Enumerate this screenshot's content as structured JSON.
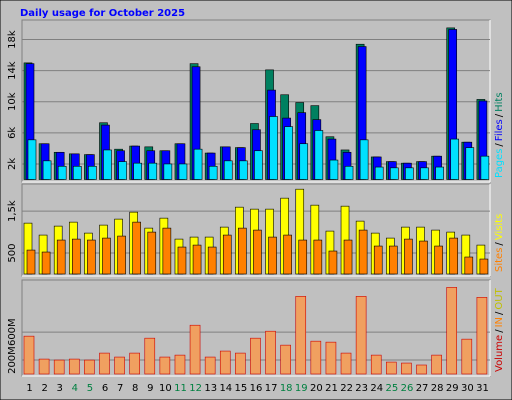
{
  "title": "Daily usage for October 2025",
  "categories": [
    "1",
    "2",
    "3",
    "4",
    "5",
    "6",
    "7",
    "8",
    "9",
    "10",
    "11",
    "12",
    "13",
    "14",
    "15",
    "16",
    "17",
    "18",
    "19",
    "20",
    "21",
    "22",
    "23",
    "24",
    "25",
    "26",
    "27",
    "28",
    "29",
    "30",
    "31"
  ],
  "weekend_categories": [
    "4",
    "5",
    "11",
    "12",
    "18",
    "19",
    "25",
    "26"
  ],
  "weekend_color": "#008040",
  "legend_separator": "/",
  "chart_data": [
    {
      "type": "bar",
      "ylim": [
        0,
        20000
      ],
      "yticks": [
        {
          "value": 2000,
          "label": "2k"
        },
        {
          "value": 6000,
          "label": "6k"
        },
        {
          "value": 10000,
          "label": "10k"
        },
        {
          "value": 14000,
          "label": "14k"
        },
        {
          "value": 18000,
          "label": "18k"
        }
      ],
      "grid": true,
      "series": [
        {
          "name": "Hits",
          "color": "#008060",
          "values": [
            15000,
            4600,
            3500,
            3300,
            3200,
            7300,
            3900,
            4300,
            4200,
            3700,
            4600,
            14900,
            3400,
            4200,
            4100,
            7200,
            14100,
            10900,
            9900,
            9500,
            5500,
            3800,
            17400,
            2900,
            2300,
            2100,
            2300,
            3000,
            19500,
            4800,
            10300
          ]
        },
        {
          "name": "Files",
          "color": "#0000ff",
          "values": [
            14900,
            4600,
            3500,
            3300,
            3200,
            7000,
            3700,
            4300,
            3700,
            3700,
            4600,
            14500,
            3400,
            4200,
            4100,
            6400,
            11500,
            7900,
            8600,
            7700,
            5200,
            3500,
            17100,
            2900,
            2300,
            2100,
            2300,
            3000,
            19300,
            4800,
            10100
          ]
        },
        {
          "name": "Pages",
          "color": "#00e0ff",
          "values": [
            5100,
            2400,
            1700,
            1700,
            1700,
            3800,
            2300,
            2100,
            2100,
            2000,
            2000,
            3900,
            1700,
            2400,
            2400,
            3700,
            8100,
            6800,
            4600,
            6300,
            2500,
            1700,
            5100,
            1600,
            1500,
            1500,
            1500,
            1600,
            5200,
            4100,
            3000
          ]
        }
      ]
    },
    {
      "type": "bar",
      "ylim": [
        0,
        2100
      ],
      "yticks": [
        500,
        {
          "value": 1500,
          "label": "1,5k"
        }
      ],
      "grid": true,
      "series": [
        {
          "name": "Visits",
          "color": "#ffff00",
          "values": [
            1214,
            929,
            1143,
            1238,
            976,
            1167,
            1310,
            1476,
            1095,
            1333,
            833,
            881,
            881,
            1119,
            1595,
            1548,
            1548,
            1810,
            2024,
            1643,
            1024,
            1619,
            1262,
            976,
            857,
            1119,
            1119,
            1048,
            1000,
            929,
            690
          ]
        },
        {
          "name": "Sites",
          "color": "#ff8000",
          "values": [
            571,
            524,
            810,
            833,
            810,
            857,
            905,
            1238,
            1000,
            1095,
            643,
            690,
            643,
            929,
            1095,
            1048,
            881,
            929,
            810,
            810,
            548,
            810,
            1048,
            667,
            667,
            833,
            786,
            667,
            857,
            405,
            357
          ]
        }
      ]
    },
    {
      "type": "bar",
      "ylim": [
        0,
        1320
      ],
      "yticks": [
        {
          "value": 200,
          "label": "200M"
        },
        {
          "value": 600,
          "label": "600M"
        }
      ],
      "grid": true,
      "series": [
        {
          "name": "Volume",
          "color": "#f0a060",
          "values": [
            543,
            214,
            200,
            214,
            200,
            300,
            243,
            300,
            514,
            243,
            271,
            700,
            243,
            329,
            300,
            514,
            614,
            414,
            1114,
            471,
            457,
            300,
            1114,
            271,
            171,
            157,
            129,
            271,
            1243,
            500,
            1100
          ]
        }
      ],
      "legend": [
        {
          "name": "Volume",
          "color": "#cc0000"
        },
        {
          "name": "IN",
          "color": "#ff8000"
        },
        {
          "name": "OUT",
          "color": "#c0c000"
        }
      ]
    }
  ]
}
